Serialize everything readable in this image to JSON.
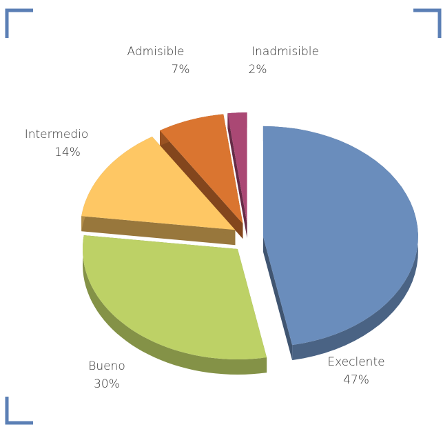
{
  "chart_data": {
    "type": "pie",
    "categories": [
      "Execlente",
      "Bueno",
      "Intermedio",
      "Admisible",
      "Inadmisible"
    ],
    "values": [
      47,
      30,
      14,
      7,
      2
    ],
    "value_labels": [
      "47%",
      "30%",
      "14%",
      "7%",
      "2%"
    ],
    "colors": [
      "#6a8dbc",
      "#bdd166",
      "#fec764",
      "#da7530",
      "#aa4874"
    ],
    "exploded": true,
    "three_d": true
  }
}
